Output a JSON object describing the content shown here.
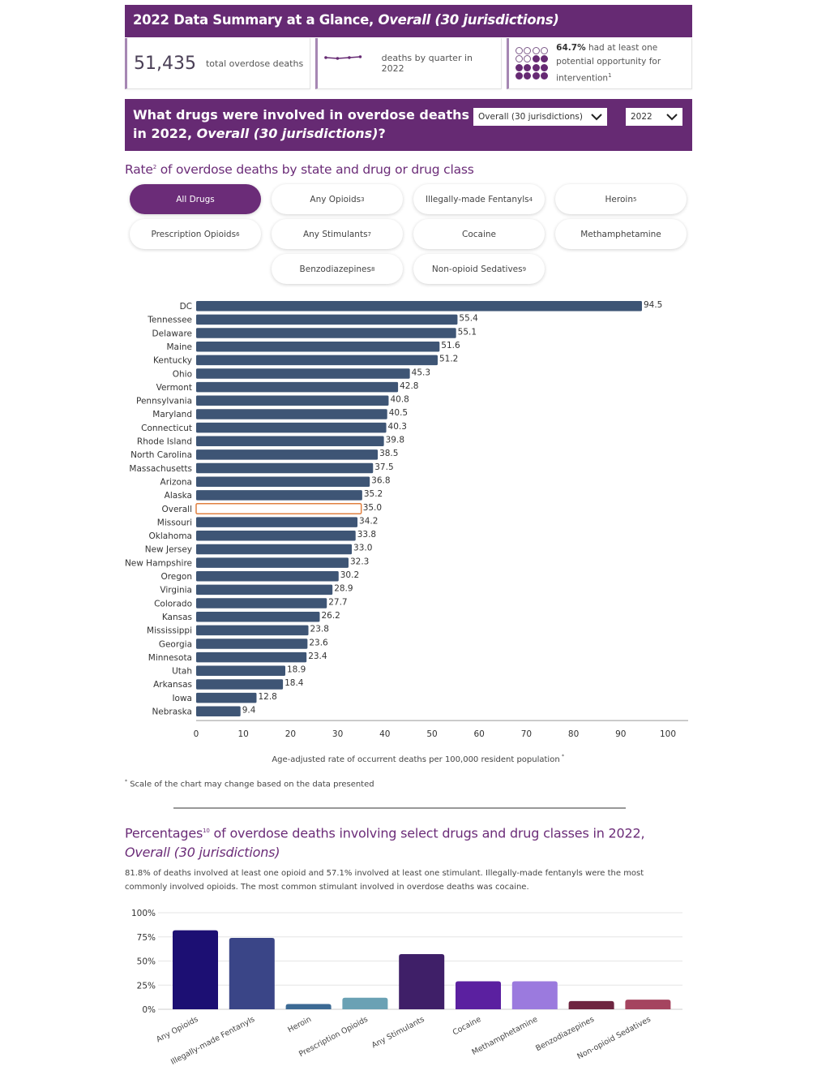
{
  "summary": {
    "title_prefix": "2022 Data Summary at a Glance,",
    "title_italic": "Overall (30 jurisdictions)",
    "total_deaths": "51,435",
    "total_deaths_label": "total overdose deaths",
    "quarter_label": "deaths by quarter in 2022",
    "opportunity_pct": "64.7%",
    "opportunity_text": "had at least one potential opportunity for intervention",
    "opportunity_sup": "1",
    "dot_grid": {
      "total": 16,
      "empty": 6
    }
  },
  "drugs_banner": {
    "title_line1": "What drugs were involved in overdose deaths",
    "title_line2_prefix": "in 2022,",
    "title_line2_italic": "Overall (30 jurisdictions)",
    "title_line2_suffix": "?",
    "jurisdiction_select": "Overall (30 jurisdictions)",
    "year_select": "2022"
  },
  "rate_section": {
    "title": "Rate",
    "title_sup": "2",
    "title_rest": " of overdose deaths by state and drug or drug class",
    "pills": [
      {
        "label": "All Drugs",
        "sup": "",
        "active": true
      },
      {
        "label": "Any Opioids",
        "sup": "3",
        "active": false
      },
      {
        "label": "Illegally-made Fentanyls",
        "sup": "4",
        "active": false
      },
      {
        "label": "Heroin",
        "sup": "5",
        "active": false
      },
      {
        "label": "Prescription Opioids",
        "sup": "6",
        "active": false
      },
      {
        "label": "Any Stimulants",
        "sup": "7",
        "active": false
      },
      {
        "label": "Cocaine",
        "sup": "",
        "active": false
      },
      {
        "label": "Methamphetamine",
        "sup": "",
        "active": false
      },
      {
        "label": "Benzodiazepines",
        "sup": "8",
        "active": false
      },
      {
        "label": "Non-opioid Sedatives",
        "sup": "9",
        "active": false
      }
    ],
    "footnote": "Scale of the chart may change based on the data presented",
    "footnote_mark": "*"
  },
  "pct_section": {
    "title": "Percentages",
    "title_sup": "10",
    "title_rest": " of overdose deaths involving select drugs and drug classes in 2022,",
    "title_italic": "Overall (30 jurisdictions)",
    "description": "81.8% of deaths involved at least one opioid and 57.1% involved at least one stimulant. Illegally-made fentanyls were the most commonly involved opioids. The most common stimulant involved in overdose deaths was cocaine."
  },
  "chart_data": [
    {
      "type": "bar",
      "orientation": "horizontal",
      "title": "Rate of overdose deaths by state and drug or drug class",
      "xlabel": "Age-adjusted rate of occurrent deaths per 100,000 resident population",
      "xlabel_sup": "*",
      "ylabel": "",
      "xlim": [
        0,
        100
      ],
      "xticks": [
        0,
        10,
        20,
        30,
        40,
        50,
        60,
        70,
        80,
        90,
        100
      ],
      "grid": false,
      "bar_color": "#3e5575",
      "highlight_category": "Overall",
      "highlight_color": "#e08040",
      "categories": [
        "DC",
        "Tennessee",
        "Delaware",
        "Maine",
        "Kentucky",
        "Ohio",
        "Vermont",
        "Pennsylvania",
        "Maryland",
        "Connecticut",
        "Rhode Island",
        "North Carolina",
        "Massachusetts",
        "Arizona",
        "Alaska",
        "Overall",
        "Missouri",
        "Oklahoma",
        "New Jersey",
        "New Hampshire",
        "Oregon",
        "Virginia",
        "Colorado",
        "Kansas",
        "Mississippi",
        "Georgia",
        "Minnesota",
        "Utah",
        "Arkansas",
        "Iowa",
        "Nebraska"
      ],
      "values": [
        94.5,
        55.4,
        55.1,
        51.6,
        51.2,
        45.3,
        42.8,
        40.8,
        40.5,
        40.3,
        39.8,
        38.5,
        37.5,
        36.8,
        35.2,
        35.0,
        34.2,
        33.8,
        33.0,
        32.3,
        30.2,
        28.9,
        27.7,
        26.2,
        23.8,
        23.6,
        23.4,
        18.9,
        18.4,
        12.8,
        9.4
      ],
      "value_labels": [
        "94.5",
        "55.4",
        "55.1",
        "51.6",
        "51.2",
        "45.3",
        "42.8",
        "40.8",
        "40.5",
        "40.3",
        "39.8",
        "38.5",
        "37.5",
        "36.8",
        "35.2",
        "35.0",
        "34.2",
        "33.8",
        "33.0",
        "32.3",
        "30.2",
        "28.9",
        "27.7",
        "26.2",
        "23.8",
        "23.6",
        "23.4",
        "18.9",
        "18.4",
        "12.8",
        "9.4"
      ]
    },
    {
      "type": "bar",
      "orientation": "vertical",
      "title": "Percentages of overdose deaths involving select drugs and drug classes in 2022",
      "xlabel": "",
      "ylabel": "",
      "ylim": [
        0,
        100
      ],
      "yticks": [
        "0%",
        "25%",
        "50%",
        "75%",
        "100%"
      ],
      "ytick_values": [
        0,
        25,
        50,
        75,
        100
      ],
      "grid": true,
      "categories": [
        "Any Opioids",
        "Illegally-made Fentanyls",
        "Heroin",
        "Prescription Opioids",
        "Any Stimulants",
        "Cocaine",
        "Methamphetamine",
        "Benzodiazepines",
        "Non-opioid Sedatives"
      ],
      "values": [
        81.8,
        74,
        5.5,
        12,
        57.1,
        29,
        29,
        8.5,
        10
      ],
      "colors": [
        "#1c0f73",
        "#3a4587",
        "#3c6a94",
        "#6aa1b4",
        "#3f1f68",
        "#5b20a0",
        "#9b7ade",
        "#6e2540",
        "#a5445f"
      ]
    }
  ]
}
